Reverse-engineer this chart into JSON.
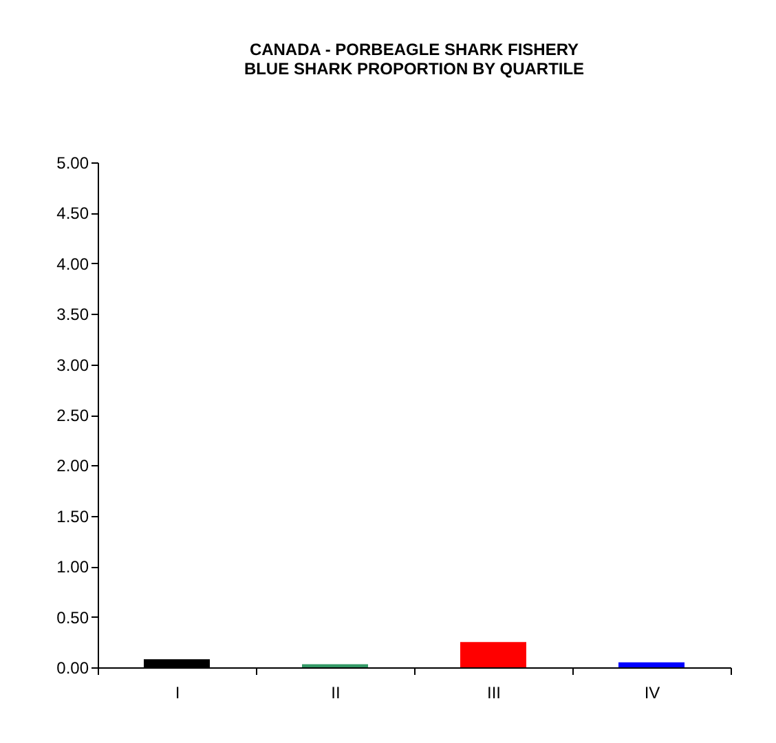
{
  "chart_data": {
    "type": "bar",
    "title": "CANADA - PORBEAGLE SHARK FISHERY",
    "subtitle": "BLUE SHARK PROPORTION BY QUARTILE",
    "categories": [
      "I",
      "II",
      "III",
      "IV"
    ],
    "values": [
      0.08,
      0.03,
      0.25,
      0.05
    ],
    "colors": [
      "#000000",
      "#339966",
      "#ff0000",
      "#0000ff"
    ],
    "ylim": [
      0,
      5
    ],
    "yticks": [
      {
        "value": 0,
        "label": "0.00"
      },
      {
        "value": 0.5,
        "label": "0.50"
      },
      {
        "value": 1,
        "label": "1.00"
      },
      {
        "value": 1.5,
        "label": "1.50"
      },
      {
        "value": 2,
        "label": "2.00"
      },
      {
        "value": 2.5,
        "label": "2.50"
      },
      {
        "value": 3,
        "label": "3.00"
      },
      {
        "value": 3.5,
        "label": "3.50"
      },
      {
        "value": 4,
        "label": "4.00"
      },
      {
        "value": 4.5,
        "label": "4.50"
      },
      {
        "value": 5,
        "label": "5.00"
      }
    ],
    "grid": false
  }
}
